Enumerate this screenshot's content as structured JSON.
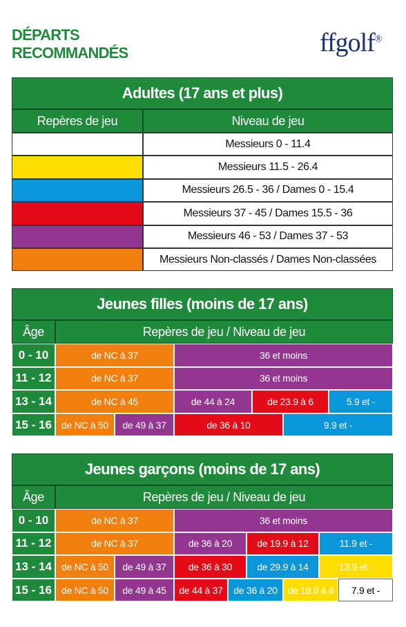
{
  "header": {
    "title": [
      "DÉPARTS",
      "RECOMMANDÉS"
    ],
    "logo": "ffgolf",
    "logo_mark": "®"
  },
  "adults": {
    "title": "Adultes (17 ans et plus)",
    "columns": [
      "Repères de jeu",
      "Niveau de jeu"
    ],
    "rows": [
      {
        "color": "#ffffff",
        "level": "Messieurs 0 - 11.4"
      },
      {
        "color": "#ffdd00",
        "level": "Messieurs 11.5 - 26.4"
      },
      {
        "color": "#0a96d8",
        "level": "Messieurs 26.5 - 36 / Dames 0 - 15.4"
      },
      {
        "color": "#e30b17",
        "level": "Messieurs 37 - 45 / Dames 15.5 - 36"
      },
      {
        "color": "#93368f",
        "level": "Messieurs 46 - 53 / Dames 37 - 53"
      },
      {
        "color": "#f07f0f",
        "level": "Messieurs Non-classés / Dames Non-classées"
      }
    ]
  },
  "girls": {
    "title": "Jeunes filles (moins de 17 ans)",
    "columns": [
      "Âge",
      "Repères de jeu / Niveau de jeu"
    ],
    "rows": [
      {
        "age": "0 - 10",
        "cells": [
          {
            "text": "de NC à 37",
            "color": "#f07f0f"
          },
          {
            "text": "36 et moins",
            "color": "#93368f"
          }
        ]
      },
      {
        "age": "11 - 12",
        "cells": [
          {
            "text": "de NC à 37",
            "color": "#f07f0f"
          },
          {
            "text": "36 et moins",
            "color": "#93368f"
          }
        ]
      },
      {
        "age": "13 - 14",
        "cells": [
          {
            "text": "de NC à 45",
            "color": "#f07f0f"
          },
          {
            "text": "de 44 à 24",
            "color": "#93368f"
          },
          {
            "text": "de 23.9 à 6",
            "color": "#e30b17"
          },
          {
            "text": "5.9 et -",
            "color": "#0a96d8"
          }
        ]
      },
      {
        "age": "15 - 16",
        "cells": [
          {
            "text": "de NC à 50",
            "color": "#f07f0f"
          },
          {
            "text": "de 49 à 37",
            "color": "#93368f"
          },
          {
            "text": "de 36 à 10",
            "color": "#e30b17"
          },
          {
            "text": "9.9 et -",
            "color": "#0a96d8"
          }
        ]
      }
    ]
  },
  "boys": {
    "title": "Jeunes garçons (moins de 17 ans)",
    "columns": [
      "Âge",
      "Repères de jeu / Niveau de jeu"
    ],
    "rows": [
      {
        "age": "0 - 10",
        "cells": [
          {
            "text": "de NC à 37",
            "color": "#f07f0f"
          },
          {
            "text": "36 et moins",
            "color": "#93368f"
          }
        ]
      },
      {
        "age": "11 - 12",
        "cells": [
          {
            "text": "de NC à 37",
            "color": "#f07f0f"
          },
          {
            "text": "de 36 à 20",
            "color": "#93368f"
          },
          {
            "text": "de 19.9 à 12",
            "color": "#e30b17"
          },
          {
            "text": "11.9 et -",
            "color": "#0a96d8"
          }
        ]
      },
      {
        "age": "13 - 14",
        "cells": [
          {
            "text": "de NC à 50",
            "color": "#f07f0f"
          },
          {
            "text": "de 49 à 37",
            "color": "#93368f"
          },
          {
            "text": "de 36 à 30",
            "color": "#e30b17"
          },
          {
            "text": "de 29.9 à 14",
            "color": "#0a96d8"
          },
          {
            "text": "13.9 et -",
            "color": "#ffdd00"
          }
        ]
      },
      {
        "age": "15 - 16",
        "cells": [
          {
            "text": "de NC à 50",
            "color": "#f07f0f"
          },
          {
            "text": "de 49 à 45",
            "color": "#93368f"
          },
          {
            "text": "de 44 à 37",
            "color": "#e30b17"
          },
          {
            "text": "de 36 à 20",
            "color": "#0a96d8"
          },
          {
            "text": "de 19.9 à 8",
            "color": "#ffdd00"
          },
          {
            "text": "7.9 et -",
            "color": "#ffffff"
          }
        ]
      }
    ]
  }
}
